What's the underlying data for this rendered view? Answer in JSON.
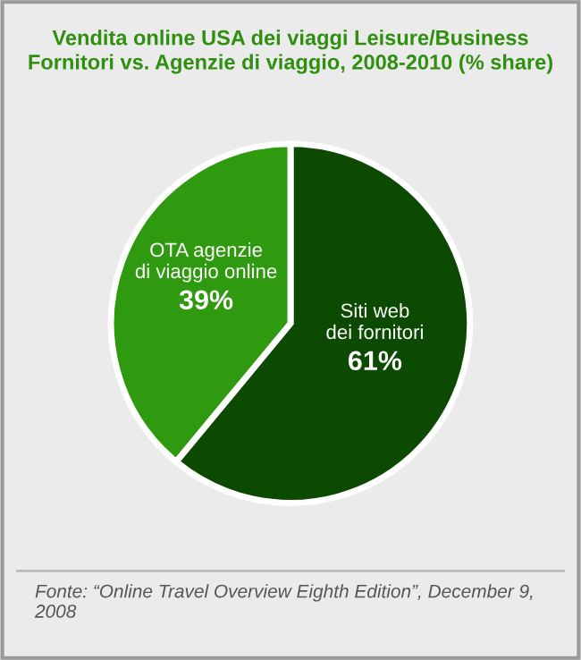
{
  "chart_data": {
    "type": "pie",
    "title": "Vendita online USA dei viaggi Leisure/Business\nFornitori vs. Agenzie di viaggio, 2008-2010 (% share)",
    "categories": [
      "Siti web\ndei fornitori",
      "OTA agenzie\ndi viaggio online"
    ],
    "values": [
      61,
      39
    ],
    "value_labels": [
      "61%",
      "39%"
    ],
    "colors": [
      "#0b4a00",
      "#2f9a0f"
    ],
    "annotations": [
      "Fonte: “Online Travel Overview Eighth Edition”, December 9, 2008"
    ]
  }
}
